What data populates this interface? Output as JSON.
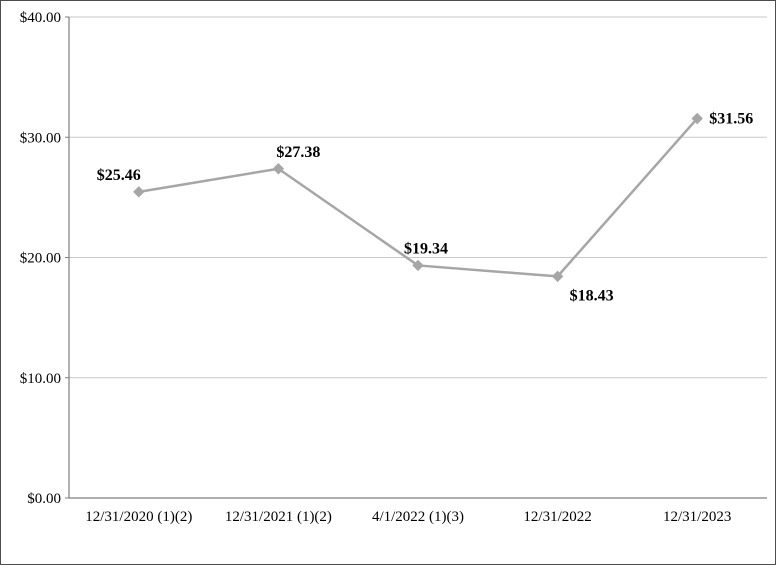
{
  "chart_data": {
    "type": "line",
    "title": "",
    "xlabel": "",
    "ylabel": "",
    "categories": [
      "12/31/2020 (1)(2)",
      "12/31/2021 (1)(2)",
      "4/1/2022 (1)(3)",
      "12/31/2022",
      "12/31/2023"
    ],
    "values": [
      25.46,
      27.38,
      19.34,
      18.43,
      31.56
    ],
    "point_labels": [
      "$25.46",
      "$27.38",
      "$19.34",
      "$18.43",
      "$31.56"
    ],
    "label_placement": [
      "above-left",
      "above-right",
      "above",
      "below-right",
      "right"
    ],
    "ylim": [
      0,
      40
    ],
    "ytick_step": 10,
    "ytick_labels": [
      "$0.00",
      "$10.00",
      "$20.00",
      "$30.00",
      "$40.00"
    ],
    "grid": true,
    "legend": "none",
    "line_color": "#a6a6a6",
    "marker": "diamond",
    "marker_color": "#a6a6a6",
    "gridline_color": "#c9c9c9",
    "axis_color": "#7f7f7f",
    "label_color": "#000000"
  }
}
